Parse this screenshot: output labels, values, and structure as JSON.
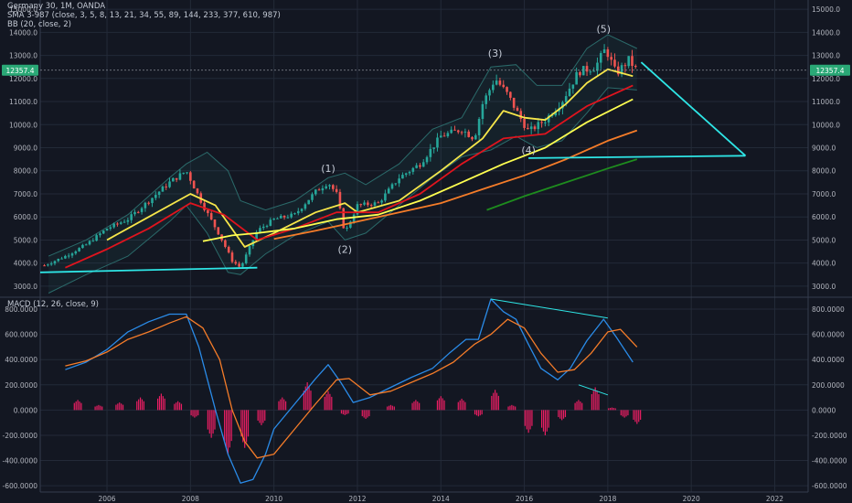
{
  "legend": {
    "title": "Germany 30, 1M, OANDA",
    "sma": "SMA 3-987 (close, 3, 5, 8, 13, 21, 34, 55, 89, 144, 233, 377, 610, 987)",
    "bb": "BB (20, close, 2)",
    "macd": "MACD (12, 26, close, 9)"
  },
  "price_tag": "12357.4",
  "colors": {
    "background": "#131722",
    "grid": "#232a38",
    "text": "#b2b5be",
    "up": "#26a69a",
    "down": "#ef5350",
    "bb_band": "#2b6a6a",
    "trendline": "#2ee6e6",
    "macd_line": "#2a8be8",
    "signal_line": "#f57c29",
    "histogram": "#e91e63",
    "price_tag": "#2aa876"
  },
  "chart_data": [
    {
      "type": "candlestick",
      "title": "Germany 30, 1M, OANDA",
      "x_ticks": [
        "2006",
        "2008",
        "2010",
        "2012",
        "2014",
        "2016",
        "2018",
        "2020",
        "2022"
      ],
      "xlim": [
        2004.4,
        2022.8
      ],
      "y_ticks": [
        "3000.0",
        "4000.0",
        "5000.0",
        "6000.0",
        "7000.0",
        "8000.0",
        "9000.0",
        "10000.0",
        "11000.0",
        "12000.0",
        "13000.0",
        "14000.0",
        "15000.0"
      ],
      "ylim": [
        2600,
        15400
      ],
      "last_price": 12357.4,
      "close_series": {
        "x": [
          2004.5,
          2005.0,
          2005.5,
          2006.0,
          2006.5,
          2007.0,
          2007.5,
          2007.9,
          2008.3,
          2008.7,
          2009.0,
          2009.2,
          2009.6,
          2010.0,
          2010.5,
          2011.0,
          2011.3,
          2011.5,
          2011.7,
          2012.0,
          2012.5,
          2013.0,
          2013.5,
          2014.0,
          2014.5,
          2014.8,
          2015.0,
          2015.3,
          2015.6,
          2015.9,
          2016.1,
          2016.5,
          2016.9,
          2017.3,
          2017.7,
          2017.95,
          2018.2,
          2018.5,
          2018.7
        ],
        "y": [
          3900,
          4300,
          4800,
          5500,
          5900,
          6700,
          7500,
          8000,
          6500,
          5200,
          4100,
          3800,
          5400,
          5900,
          6100,
          7100,
          7500,
          7000,
          5300,
          6500,
          6600,
          7700,
          8300,
          9500,
          9800,
          9400,
          10900,
          12000,
          11300,
          10300,
          9700,
          10200,
          11000,
          12300,
          12500,
          13300,
          12200,
          12800,
          12357
        ]
      },
      "sma_series": [
        {
          "x": [
            2006.0,
            2007.0,
            2008.0,
            2008.6,
            2009.3,
            2010.0,
            2011.0,
            2011.7,
            2012.0,
            2013.0,
            2014.0,
            2015.0,
            2015.5,
            2016.0,
            2016.5,
            2017.0,
            2017.5,
            2018.0,
            2018.6
          ],
          "y": [
            5000,
            6000,
            7000,
            6500,
            4700,
            5300,
            6200,
            6600,
            6200,
            6700,
            8000,
            9400,
            10600,
            10300,
            10200,
            10900,
            11800,
            12400,
            12100
          ],
          "color": "#f6e64a"
        },
        {
          "x": [
            2005.0,
            2006.0,
            2007.0,
            2008.0,
            2008.8,
            2009.6,
            2010.5,
            2011.5,
            2012.5,
            2013.5,
            2014.5,
            2015.5,
            2016.5,
            2017.5,
            2018.6
          ],
          "y": [
            3800,
            4600,
            5500,
            6600,
            6100,
            5000,
            5500,
            6200,
            6200,
            7000,
            8300,
            9400,
            9600,
            10800,
            11700
          ],
          "color": "#e0141e"
        },
        {
          "x": [
            2008.3,
            2009.0,
            2009.6,
            2010.5,
            2011.5,
            2012.5,
            2013.5,
            2014.5,
            2015.5,
            2016.5,
            2017.5,
            2018.6
          ],
          "y": [
            4950,
            5200,
            5300,
            5500,
            5900,
            6100,
            6700,
            7500,
            8300,
            9000,
            10100,
            11100
          ],
          "color": "#ffff50"
        },
        {
          "x": [
            2010.0,
            2011.0,
            2012.0,
            2013.0,
            2014.0,
            2015.0,
            2016.0,
            2017.0,
            2018.0,
            2018.7
          ],
          "y": [
            5050,
            5400,
            5800,
            6200,
            6600,
            7200,
            7800,
            8500,
            9300,
            9750
          ],
          "color": "#f57c29"
        },
        {
          "x": [
            2015.1,
            2016.0,
            2017.0,
            2018.0,
            2018.7
          ],
          "y": [
            6300,
            6900,
            7500,
            8100,
            8500
          ],
          "color": "#1e8c1e"
        }
      ],
      "bollinger": {
        "x": [
          2004.6,
          2005.5,
          2006.5,
          2007.5,
          2007.9,
          2008.4,
          2008.9,
          2009.2,
          2009.8,
          2010.5,
          2011.3,
          2011.7,
          2012.2,
          2013.0,
          2013.8,
          2014.5,
          2015.2,
          2015.8,
          2016.3,
          2016.9,
          2017.5,
          2018.0,
          2018.7
        ],
        "upper": [
          4300,
          5000,
          6100,
          7700,
          8300,
          8800,
          8000,
          6700,
          6300,
          6700,
          7700,
          7900,
          7400,
          8300,
          9800,
          10300,
          12500,
          12600,
          11700,
          11700,
          13300,
          13900,
          13300
        ],
        "lower": [
          2700,
          3500,
          4300,
          5800,
          6500,
          5300,
          3600,
          3500,
          4400,
          5200,
          5800,
          5000,
          5300,
          6500,
          7700,
          8600,
          8900,
          9500,
          9000,
          9300,
          10500,
          11600,
          11500
        ]
      },
      "trendlines": [
        {
          "x": [
            2004.4,
            2009.6
          ],
          "y": [
            3600,
            3800
          ]
        },
        {
          "x": [
            2016.1,
            2021.3
          ],
          "y": [
            8550,
            8650
          ]
        },
        {
          "x": [
            2018.8,
            2021.3
          ],
          "y": [
            12700,
            8650
          ]
        }
      ],
      "wave_labels": [
        {
          "label": "(1)",
          "x": 2011.3,
          "y": 7950
        },
        {
          "label": "(2)",
          "x": 2011.7,
          "y": 4450
        },
        {
          "label": "(3)",
          "x": 2015.3,
          "y": 12950
        },
        {
          "label": "(4)",
          "x": 2016.1,
          "y": 8750
        },
        {
          "label": "(5)",
          "x": 2017.9,
          "y": 14000
        }
      ]
    },
    {
      "type": "line",
      "title": "MACD (12, 26, close, 9)",
      "y_ticks": [
        "-600.0000",
        "-400.0000",
        "-200.0000",
        "0.0000",
        "200.0000",
        "400.0000",
        "600.0000",
        "800.0000"
      ],
      "ylim": [
        -650,
        880
      ],
      "series": [
        {
          "name": "MACD",
          "x": [
            2005.0,
            2005.5,
            2006.0,
            2006.5,
            2007.0,
            2007.5,
            2007.9,
            2008.2,
            2008.6,
            2008.9,
            2009.2,
            2009.5,
            2009.8,
            2010.0,
            2010.5,
            2011.0,
            2011.3,
            2011.6,
            2011.9,
            2012.3,
            2012.8,
            2013.3,
            2013.8,
            2014.2,
            2014.6,
            2014.9,
            2015.2,
            2015.5,
            2015.8,
            2016.1,
            2016.4,
            2016.8,
            2017.1,
            2017.5,
            2017.9,
            2018.2,
            2018.6
          ],
          "values": [
            320,
            380,
            480,
            620,
            700,
            760,
            760,
            500,
            0,
            -350,
            -580,
            -550,
            -350,
            -150,
            50,
            250,
            360,
            220,
            60,
            100,
            180,
            260,
            330,
            450,
            560,
            560,
            880,
            780,
            720,
            520,
            330,
            240,
            330,
            550,
            720,
            580,
            380
          ],
          "color": "#2a8be8"
        },
        {
          "name": "Signal",
          "x": [
            2005.0,
            2005.5,
            2006.0,
            2006.5,
            2007.0,
            2007.5,
            2007.9,
            2008.3,
            2008.7,
            2009.0,
            2009.3,
            2009.6,
            2010.0,
            2010.5,
            2011.0,
            2011.5,
            2011.8,
            2012.3,
            2012.8,
            2013.3,
            2013.8,
            2014.3,
            2014.8,
            2015.2,
            2015.6,
            2016.0,
            2016.4,
            2016.8,
            2017.2,
            2017.6,
            2018.0,
            2018.3,
            2018.7
          ],
          "values": [
            350,
            390,
            460,
            560,
            620,
            690,
            740,
            650,
            400,
            0,
            -250,
            -380,
            -350,
            -150,
            50,
            240,
            250,
            120,
            150,
            220,
            290,
            380,
            520,
            600,
            720,
            650,
            450,
            300,
            320,
            450,
            620,
            640,
            500
          ],
          "color": "#f57c29"
        }
      ],
      "histogram": {
        "x": [
          2005.3,
          2005.8,
          2006.3,
          2006.8,
          2007.3,
          2007.7,
          2008.1,
          2008.5,
          2008.9,
          2009.3,
          2009.7,
          2010.2,
          2010.8,
          2011.3,
          2011.7,
          2012.2,
          2012.8,
          2013.4,
          2014.0,
          2014.5,
          2014.9,
          2015.3,
          2015.7,
          2016.1,
          2016.5,
          2016.9,
          2017.3,
          2017.7,
          2018.1,
          2018.4,
          2018.7
        ],
        "values": [
          80,
          40,
          60,
          100,
          130,
          70,
          -60,
          -220,
          -350,
          -300,
          -120,
          100,
          220,
          150,
          -40,
          -70,
          40,
          80,
          110,
          90,
          -50,
          160,
          40,
          -180,
          -200,
          -80,
          80,
          180,
          20,
          -60,
          -110
        ]
      },
      "trendlines": [
        {
          "x": [
            2015.2,
            2018.0
          ],
          "y": [
            880,
            730
          ]
        },
        {
          "x": [
            2017.3,
            2018.0
          ],
          "y": [
            200,
            120
          ]
        }
      ]
    }
  ]
}
